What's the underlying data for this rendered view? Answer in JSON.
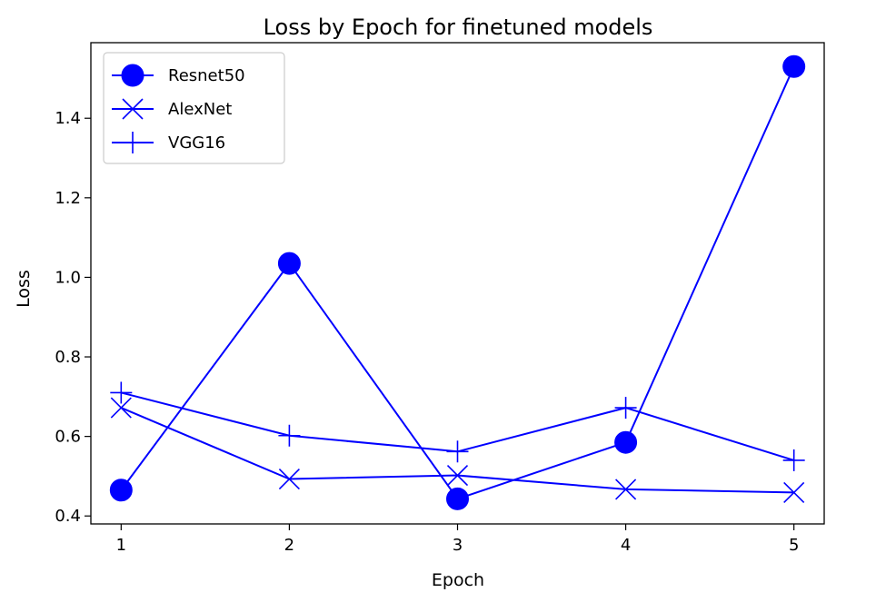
{
  "chart_data": {
    "type": "line",
    "title": "Loss by Epoch for finetuned models",
    "xlabel": "Epoch",
    "ylabel": "Loss",
    "x": [
      1,
      2,
      3,
      4,
      5
    ],
    "xlim": [
      0.82,
      5.18
    ],
    "ylim": [
      0.38,
      1.59
    ],
    "xticks": [
      "1",
      "2",
      "3",
      "4",
      "5"
    ],
    "yticks": [
      "0.4",
      "0.6",
      "0.8",
      "1.0",
      "1.2",
      "1.4"
    ],
    "ytick_values": [
      0.4,
      0.6,
      0.8,
      1.0,
      1.2,
      1.4
    ],
    "grid": false,
    "legend_position": "top-left",
    "series": [
      {
        "name": "Resnet50",
        "marker": "circle",
        "color": "#0000ff",
        "values": [
          0.465,
          1.035,
          0.443,
          0.585,
          1.53
        ]
      },
      {
        "name": "AlexNet",
        "marker": "x",
        "color": "#0000ff",
        "values": [
          0.672,
          0.493,
          0.502,
          0.467,
          0.459
        ]
      },
      {
        "name": "VGG16",
        "marker": "plus",
        "color": "#0000ff",
        "values": [
          0.71,
          0.602,
          0.562,
          0.672,
          0.54
        ]
      }
    ]
  }
}
